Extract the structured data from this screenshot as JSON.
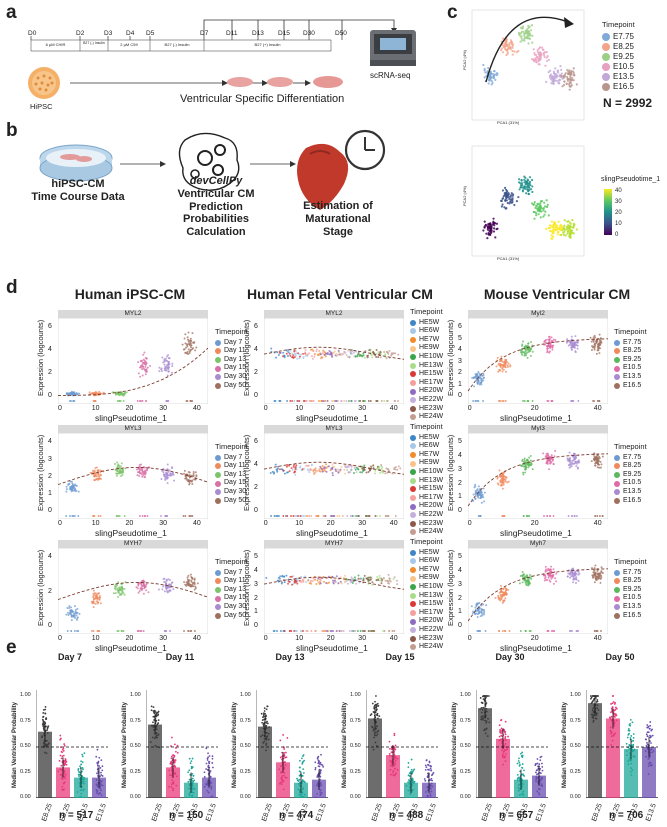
{
  "panels": {
    "a": "a",
    "b": "b",
    "c": "c",
    "d": "d",
    "e": "e"
  },
  "panel_a": {
    "days": [
      "D0",
      "D2",
      "D3",
      "D4",
      "D5",
      "D7",
      "D11",
      "D13",
      "D15",
      "D30",
      "D50"
    ],
    "media": [
      "6 µM CHIR",
      "B27 (-) Insulin",
      "2 µM C59",
      "B27 (-) Insulin",
      "B27 (+) Insulin"
    ],
    "hipsc": "HiPSC",
    "diff_label": "Ventricular Specific Differentiation",
    "seq_label": "scRNA-seq"
  },
  "panel_b": {
    "input": "hiPSC-CM\nTime Course Data",
    "model_name": "devCellPy",
    "model_desc": "Ventricular CM\nPrediction\nProbabilities\nCalculation",
    "output": "Estimation of\nMaturational\nStage"
  },
  "panel_c": {
    "legend_title": "Timepoint",
    "timepoints": [
      "E7.75",
      "E8.25",
      "E9.25",
      "E10.5",
      "E13.5",
      "E16.5"
    ],
    "colors": [
      "#7fa9d8",
      "#f2a48a",
      "#9ccf86",
      "#e8a0c0",
      "#c0a8d8",
      "#b8948c"
    ],
    "n_label": "N = 2992",
    "x_axis": "PCA1 (31%)",
    "y_axis": "PCA2 (4%)",
    "pseudo_title": "slingPseudotime_1",
    "pseudo_ticks": [
      "40",
      "30",
      "20",
      "10",
      "0"
    ]
  },
  "panel_d": {
    "headers": [
      "Human iPSC-CM",
      "Human Fetal Ventricular CM",
      "Mouse Ventricular CM"
    ],
    "xlabel": "slingPseudotime_1",
    "ylabel": "Expression (logcounts)",
    "strips": [
      [
        "MYL2",
        "MYL3",
        "MYH7"
      ],
      [
        "MYL2",
        "MYL3",
        "MYH7"
      ],
      [
        "Myl2",
        "Myl3",
        "Myh7"
      ]
    ],
    "legend_title": "Timepoint",
    "ipsc_legend": [
      "Day 7",
      "Day 11",
      "Day 13",
      "Day 15",
      "Day 30",
      "Day 50"
    ],
    "ipsc_colors": [
      "#6d9bd1",
      "#f08a5d",
      "#7bc46a",
      "#d86fa6",
      "#a88bd1",
      "#a0705f"
    ],
    "fetal_legend": [
      "HE5W",
      "HE6W",
      "HE7W",
      "HE9W",
      "HE10W",
      "HE13W",
      "HE15W",
      "HE17W",
      "HE20W",
      "HE22W",
      "HE23W",
      "HE24W"
    ],
    "fetal_colors": [
      "#3e86c6",
      "#a7c8e8",
      "#f08c2c",
      "#f8c48c",
      "#3aa54a",
      "#a8dc8c",
      "#d93a36",
      "#f4a09c",
      "#8e6cc0",
      "#c4b0dc",
      "#8c5a48",
      "#c49c90"
    ],
    "mouse_legend": [
      "E7.75",
      "E8.25",
      "E9.25",
      "E10.5",
      "E13.5",
      "E16.5"
    ],
    "mouse_colors": [
      "#6d9bd1",
      "#f08a5d",
      "#5cb85c",
      "#e06aa6",
      "#a88bd1",
      "#a0705f"
    ],
    "ipsc_xticks": [
      "0",
      "10",
      "20",
      "30",
      "40"
    ],
    "ipsc_yticks": [
      [
        "0",
        "2",
        "4",
        "6"
      ],
      [
        "0",
        "1",
        "2",
        "3",
        "4"
      ],
      [
        "0",
        "2",
        "4"
      ]
    ],
    "fetal_xticks": [
      "0",
      "10",
      "20",
      "30",
      "40"
    ],
    "fetal_yticks": [
      [
        "0",
        "2",
        "4",
        "6"
      ],
      [
        "0",
        "2",
        "4",
        "6"
      ],
      [
        "0",
        "1",
        "2",
        "3",
        "4",
        "5"
      ]
    ],
    "mouse_xticks": [
      "0",
      "20",
      "40"
    ],
    "mouse_yticks": [
      [
        "0",
        "1",
        "2",
        "3",
        "4",
        "5",
        "6"
      ],
      [
        "0",
        "1",
        "2",
        "3",
        "4",
        "5"
      ],
      [
        "0",
        "1",
        "2",
        "3",
        "4",
        "5"
      ]
    ]
  },
  "chart_data": [
    {
      "type": "bar",
      "title": "Day 7",
      "categories": [
        "E8.25",
        "E9.25",
        "E10.5",
        "E13.5"
      ],
      "values": [
        0.65,
        0.3,
        0.2,
        0.2
      ],
      "ylabel": "Median Ventricular Probability",
      "ylim": [
        0,
        1.0
      ],
      "threshold": 0.5,
      "n_label": "n = 517"
    },
    {
      "type": "bar",
      "title": "Day 11",
      "categories": [
        "E8.25",
        "E9.25",
        "E10.5",
        "E13.5"
      ],
      "values": [
        0.72,
        0.3,
        0.15,
        0.2
      ],
      "ylabel": "Median Ventricular Probability",
      "ylim": [
        0,
        1.0
      ],
      "threshold": 0.5,
      "n_label": "n = 150"
    },
    {
      "type": "bar",
      "title": "Day 13",
      "categories": [
        "E8.25",
        "E9.25",
        "E10.5",
        "E13.5"
      ],
      "values": [
        0.7,
        0.35,
        0.15,
        0.18
      ],
      "ylabel": "Median Ventricular Probability",
      "ylim": [
        0,
        1.0
      ],
      "threshold": 0.5,
      "n_label": "n = 474"
    },
    {
      "type": "bar",
      "title": "Day 15",
      "categories": [
        "E8.25",
        "E9.25",
        "E10.5",
        "E13.5"
      ],
      "values": [
        0.78,
        0.42,
        0.15,
        0.15
      ],
      "ylabel": "Median Ventricular Probability",
      "ylim": [
        0,
        1.0
      ],
      "threshold": 0.5,
      "n_label": "n = 488"
    },
    {
      "type": "bar",
      "title": "Day 30",
      "categories": [
        "E8.25",
        "E9.25",
        "E10.5",
        "E13.5"
      ],
      "values": [
        0.88,
        0.58,
        0.18,
        0.22
      ],
      "ylabel": "Median Ventricular Probability",
      "ylim": [
        0,
        1.0
      ],
      "threshold": 0.5,
      "n_label": "n = 657"
    },
    {
      "type": "bar",
      "title": "Day 50",
      "categories": [
        "E8.25",
        "E9.25",
        "E10.5",
        "E13.5"
      ],
      "values": [
        0.93,
        0.78,
        0.48,
        0.5
      ],
      "ylabel": "Median Ventricular Probability",
      "ylim": [
        0,
        1.0
      ],
      "threshold": 0.5,
      "n_label": "n = 706"
    }
  ],
  "panel_e_colors": [
    "#3c3c3c",
    "#e8397a",
    "#1fa79a",
    "#6a4fb0"
  ],
  "panel_e_yticks": [
    "0.00",
    "0.25",
    "0.50",
    "0.75",
    "1.00"
  ]
}
